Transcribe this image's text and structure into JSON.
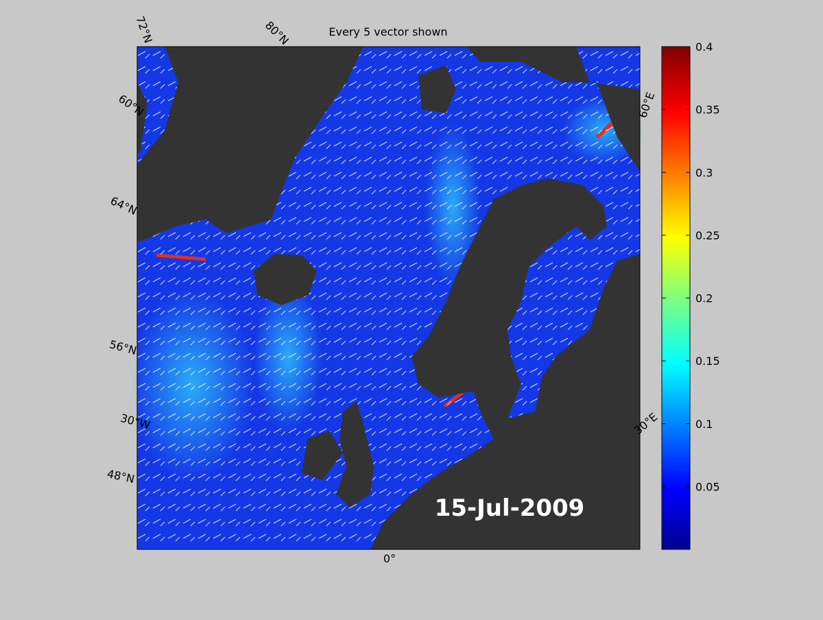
{
  "map": {
    "title": "Every 5 vector shown",
    "date_label": "15-Jul-2009",
    "grid_labels": [
      "72°N",
      "80°N",
      "60°N",
      "64°N",
      "56°N",
      "30°W",
      "48°N",
      "0°",
      "30°E",
      "60°E"
    ],
    "colorbar": {
      "range": [
        0,
        0.4
      ],
      "ticks": [
        0.05,
        0.1,
        0.15,
        0.2,
        0.25,
        0.3,
        0.35,
        0.4
      ]
    }
  }
}
